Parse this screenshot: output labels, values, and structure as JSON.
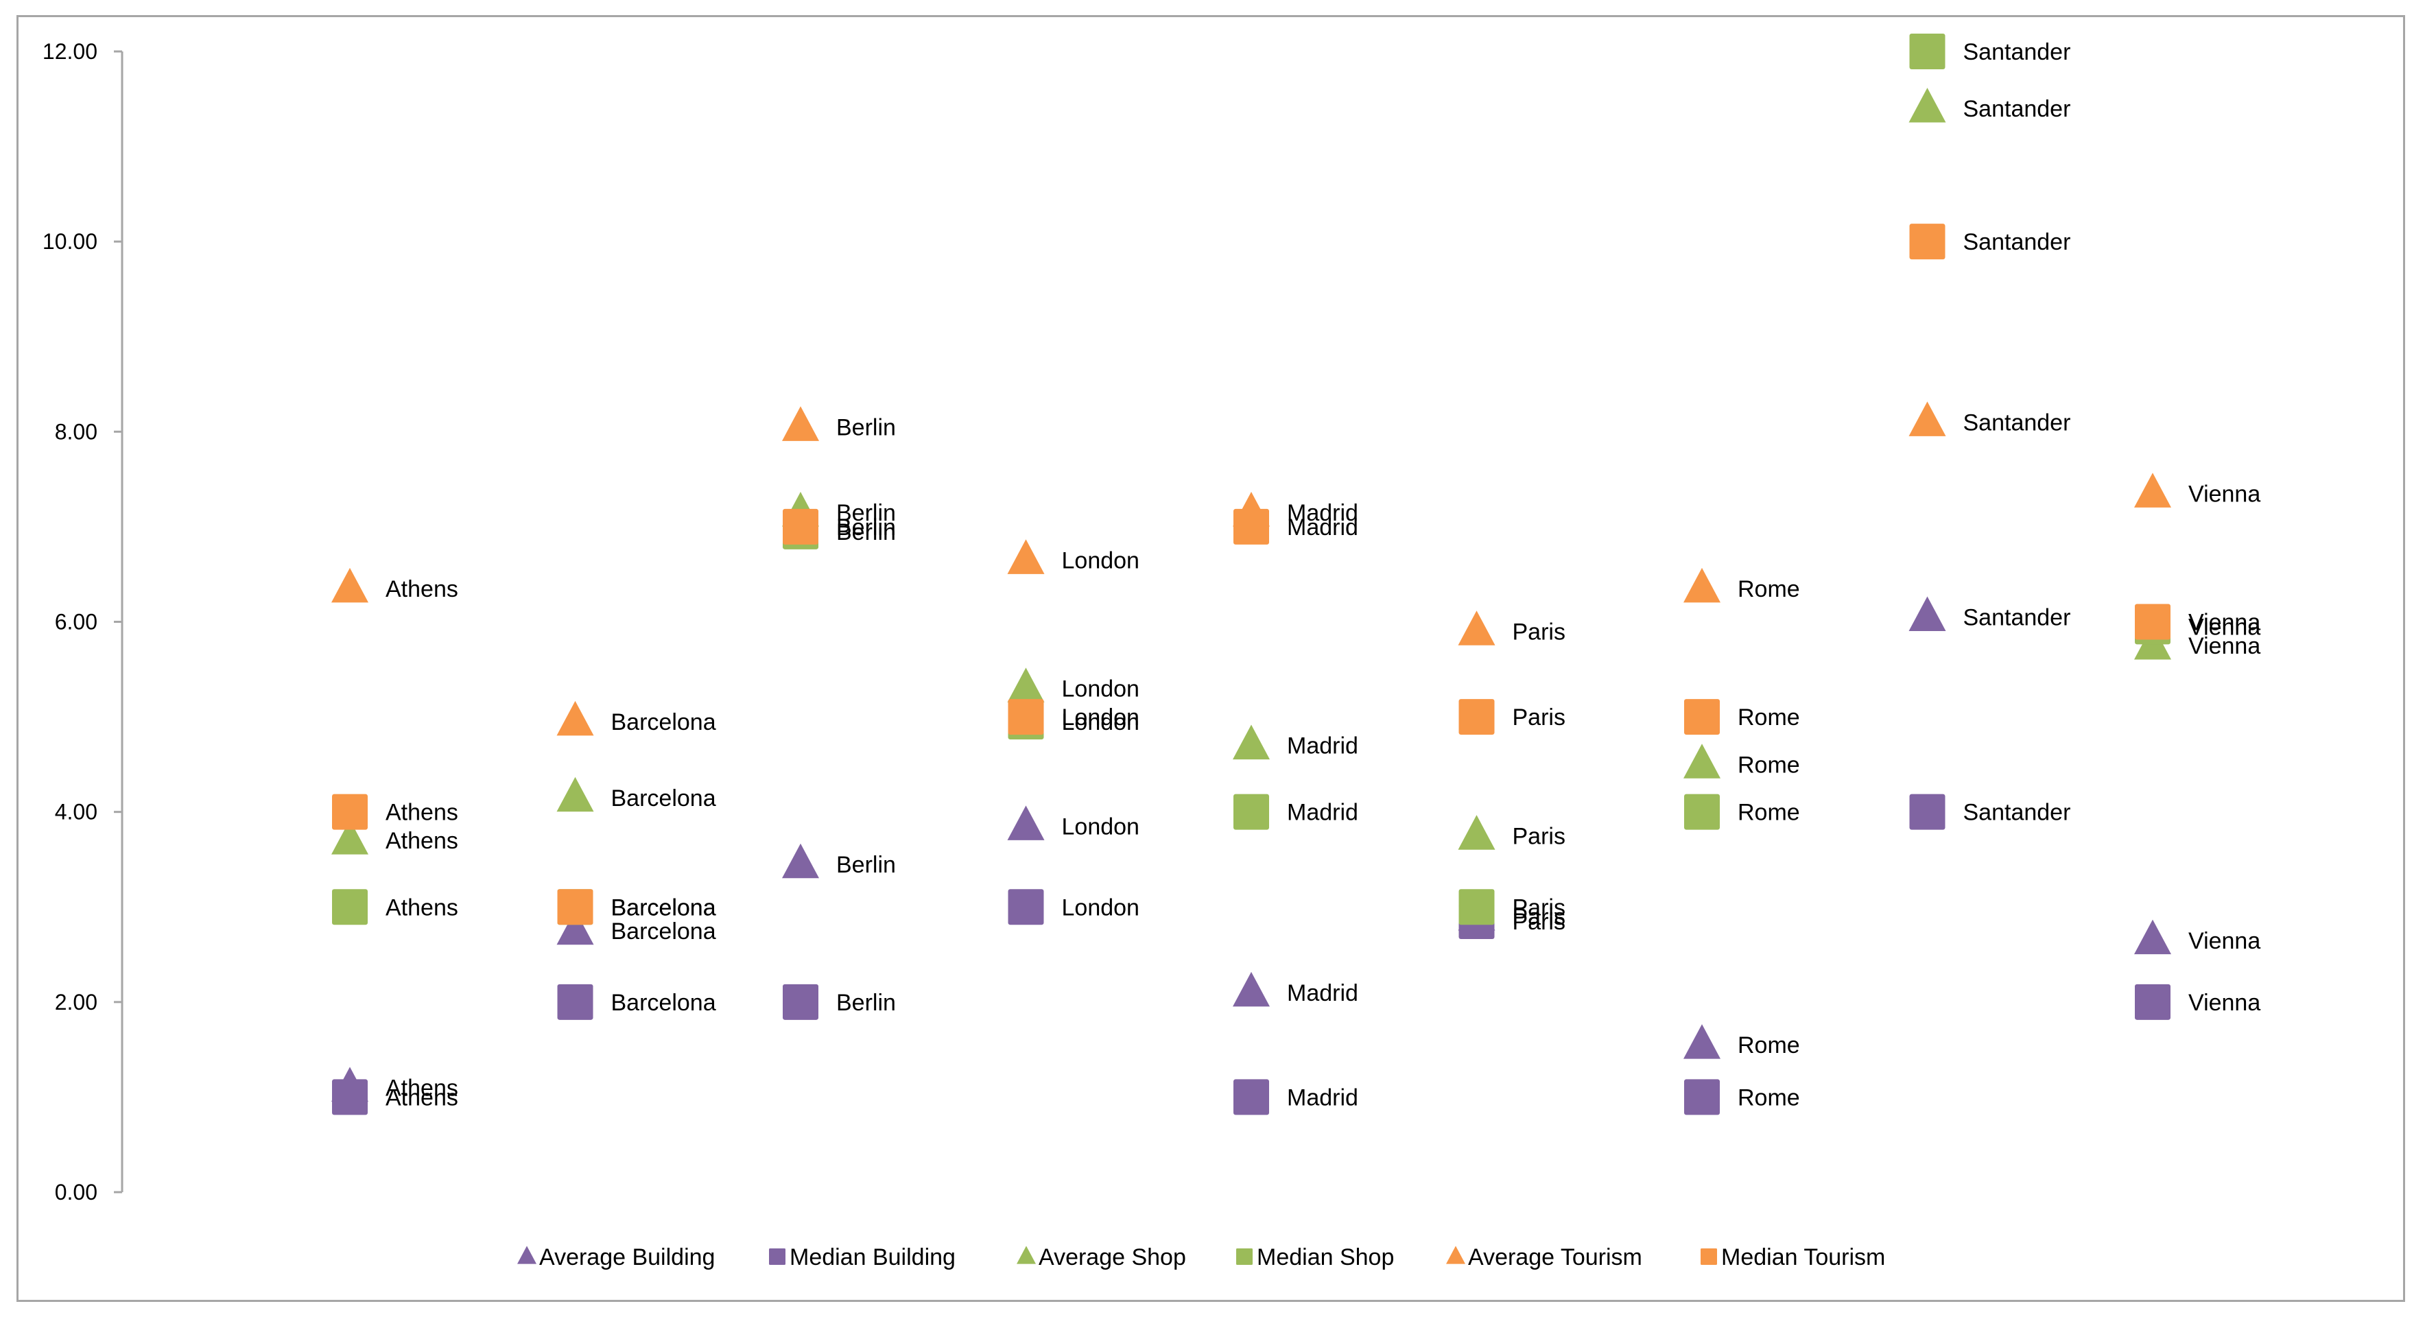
{
  "chart_data": {
    "type": "scatter",
    "title": "",
    "xlabel": "",
    "ylabel": "",
    "ylim": [
      0,
      12
    ],
    "y_ticks": [
      "0.00",
      "2.00",
      "4.00",
      "6.00",
      "8.00",
      "10.00",
      "12.00"
    ],
    "x_axis_visible": false,
    "grid": false,
    "legend_position": "bottom",
    "categories": [
      "Athens",
      "Barcelona",
      "Berlin",
      "London",
      "Madrid",
      "Paris",
      "Rome",
      "Santander",
      "Vienna"
    ],
    "series": [
      {
        "name": "Average Building",
        "marker": "triangle",
        "color": "#8064a2",
        "values": [
          1.1,
          2.75,
          3.45,
          3.85,
          2.1,
          2.9,
          1.55,
          6.05,
          2.65
        ]
      },
      {
        "name": "Median Building",
        "marker": "square",
        "color": "#8064a2",
        "values": [
          1,
          2,
          2,
          3,
          1,
          2.85,
          1,
          4,
          2
        ]
      },
      {
        "name": "Average Shop",
        "marker": "triangle",
        "color": "#9bbb59",
        "values": [
          3.7,
          4.15,
          7.15,
          5.3,
          4.7,
          3.75,
          4.5,
          11.4,
          5.75
        ]
      },
      {
        "name": "Median Shop",
        "marker": "square",
        "color": "#9bbb59",
        "values": [
          3,
          3,
          6.95,
          4.95,
          4,
          3,
          4,
          12,
          5.95
        ]
      },
      {
        "name": "Average Tourism",
        "marker": "triangle",
        "color": "#f79646",
        "values": [
          6.35,
          4.95,
          8.05,
          6.65,
          7.15,
          5.9,
          6.35,
          8.1,
          7.35
        ]
      },
      {
        "name": "Median Tourism",
        "marker": "square",
        "color": "#f79646",
        "values": [
          4,
          3,
          7,
          5,
          7,
          5,
          5,
          10,
          6
        ]
      }
    ]
  }
}
